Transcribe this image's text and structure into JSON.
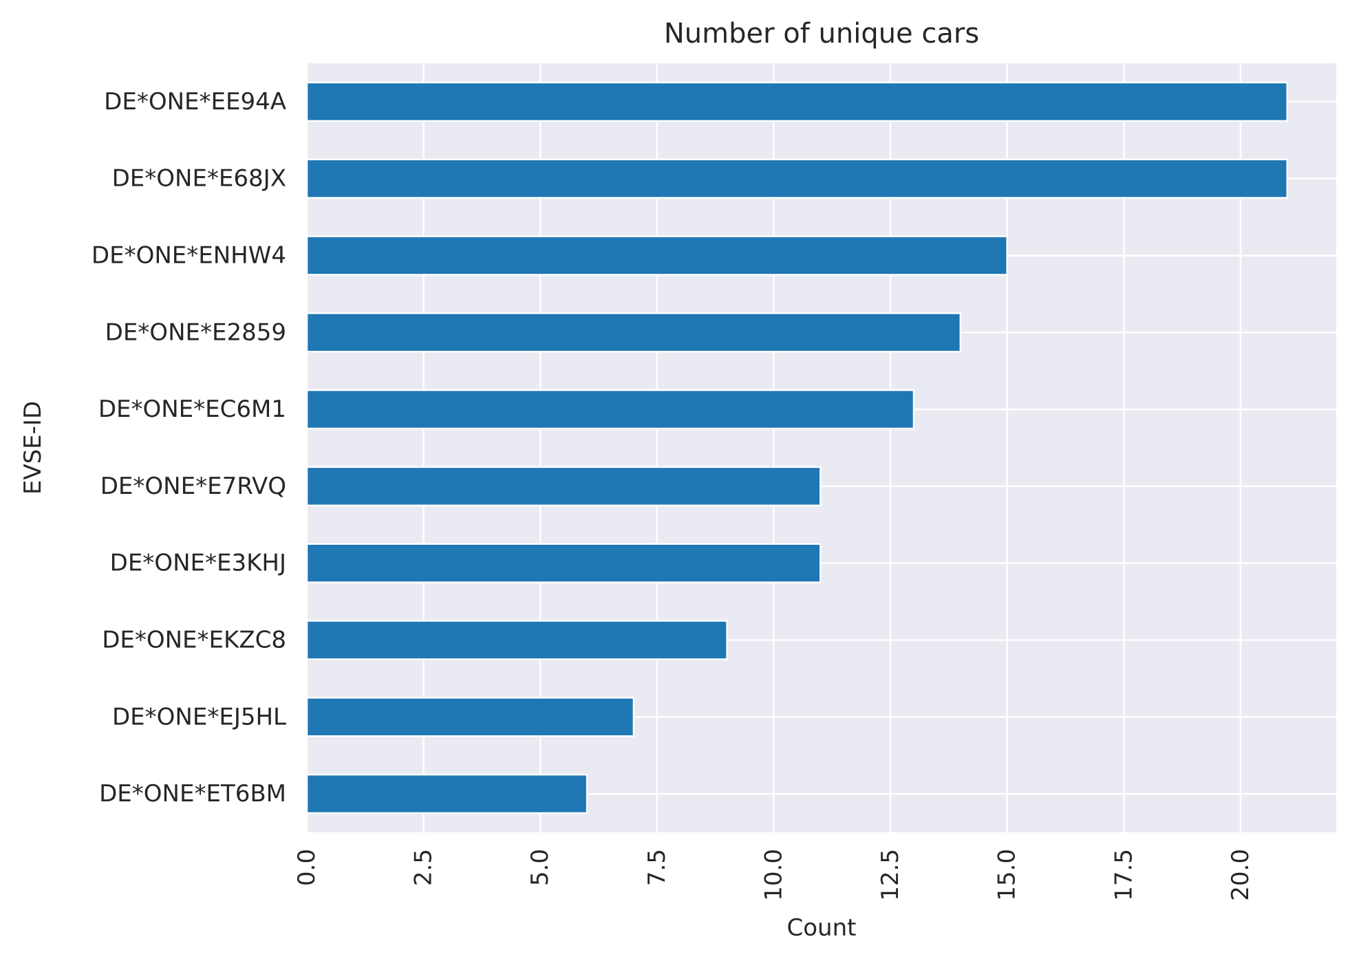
{
  "chart_data": {
    "type": "bar",
    "orientation": "horizontal",
    "title": "Number of unique cars",
    "xlabel": "Count",
    "ylabel": "EVSE-ID",
    "categories": [
      "DE*ONE*EE94A",
      "DE*ONE*E68JX",
      "DE*ONE*ENHW4",
      "DE*ONE*E2859",
      "DE*ONE*EC6M1",
      "DE*ONE*E7RVQ",
      "DE*ONE*E3KHJ",
      "DE*ONE*EKZC8",
      "DE*ONE*EJ5HL",
      "DE*ONE*ET6BM"
    ],
    "values": [
      21,
      21,
      15,
      14,
      13,
      11,
      11,
      9,
      7,
      6
    ],
    "xlim": [
      0,
      22.05
    ],
    "xticks": [
      "0.0",
      "2.5",
      "5.0",
      "7.5",
      "10.0",
      "12.5",
      "15.0",
      "17.5",
      "20.0"
    ],
    "xtick_values": [
      0,
      2.5,
      5,
      7.5,
      10,
      12.5,
      15,
      17.5,
      20
    ],
    "grid": true,
    "colors": {
      "bar": "#1f77b4",
      "plot_background": "#eaeaf2",
      "grid": "#ffffff",
      "text": "#262626"
    }
  }
}
